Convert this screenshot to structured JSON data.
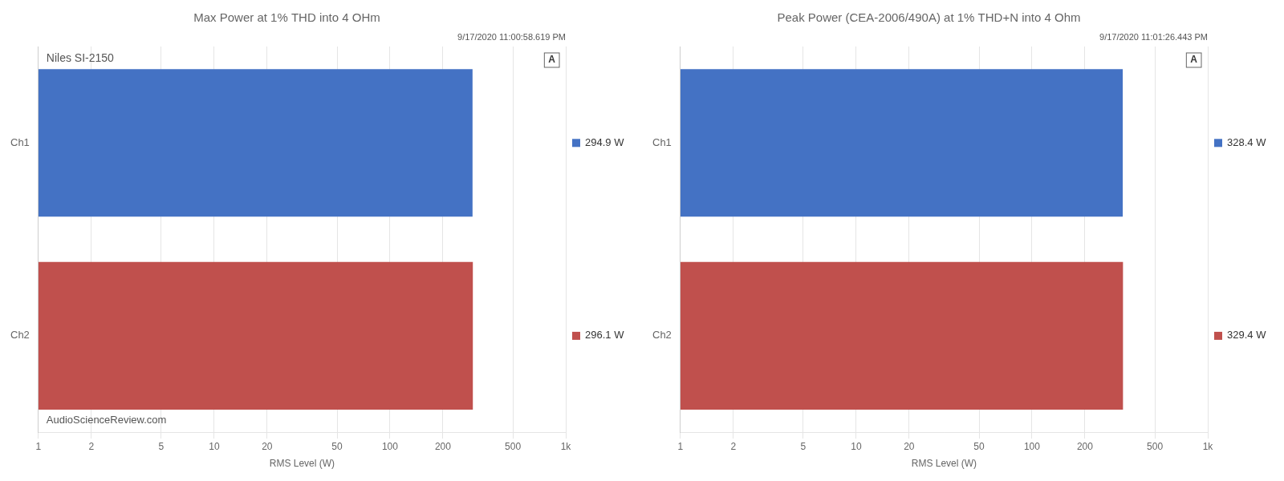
{
  "chart_data": [
    {
      "type": "bar",
      "orientation": "horizontal",
      "title": "Max Power at 1% THD into 4 OHm",
      "xlabel": "RMS Level (W)",
      "categories": [
        "Ch1",
        "Ch2"
      ],
      "values": [
        294.9,
        296.1
      ],
      "value_labels": [
        "294.9 W",
        "296.1 W"
      ],
      "data_labels": true,
      "colors": [
        "#4472C4",
        "#C0504D"
      ],
      "log": "x",
      "xlim": [
        1,
        1000
      ],
      "xticks": [
        1,
        2,
        5,
        10,
        20,
        50,
        100,
        200,
        500,
        {
          "value": 1000,
          "label": "1k"
        }
      ],
      "grid": true,
      "annotations": [
        "9/17/2020 11:00:58.619 PM",
        "A",
        "Niles SI-2150",
        "AudioScienceReview.com"
      ]
    },
    {
      "type": "bar",
      "orientation": "horizontal",
      "title": "Peak Power (CEA-2006/490A) at 1% THD+N into 4 Ohm",
      "xlabel": "RMS Level (W)",
      "categories": [
        "Ch1",
        "Ch2"
      ],
      "values": [
        328.4,
        329.4
      ],
      "value_labels": [
        "328.4 W",
        "329.4 W"
      ],
      "data_labels": true,
      "colors": [
        "#4472C4",
        "#C0504D"
      ],
      "log": "x",
      "xlim": [
        1,
        1000
      ],
      "xticks": [
        1,
        2,
        5,
        10,
        20,
        50,
        100,
        200,
        500,
        {
          "value": 1000,
          "label": "1k"
        }
      ],
      "grid": true,
      "annotations": [
        "9/17/2020 11:01:26.443 PM",
        "A"
      ]
    }
  ]
}
